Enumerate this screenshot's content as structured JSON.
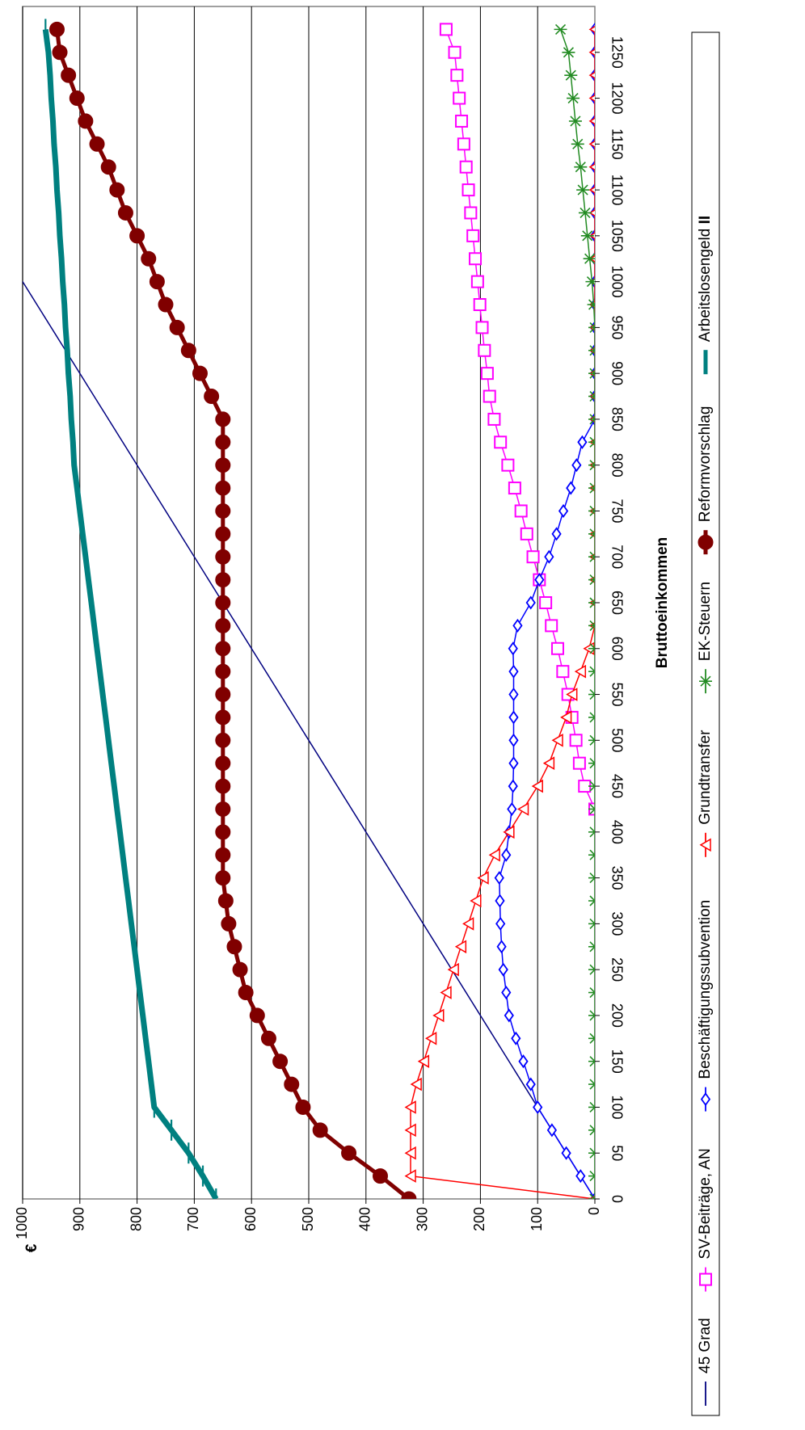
{
  "chart_data": {
    "type": "line",
    "xlabel": "Bruttoeinkommen",
    "ylabel": "€",
    "xlim": [
      0,
      1300
    ],
    "ylim": [
      0,
      1000
    ],
    "x_ticks": [
      0,
      50,
      100,
      150,
      200,
      250,
      300,
      350,
      400,
      450,
      500,
      550,
      600,
      650,
      700,
      750,
      800,
      850,
      900,
      950,
      1000,
      1050,
      1100,
      1150,
      1200,
      1250
    ],
    "y_ticks": [
      0,
      100,
      200,
      300,
      400,
      500,
      600,
      700,
      800,
      900,
      1000
    ],
    "orientation": "rotated 90° clockwise",
    "grid": "horizontal lines at each y tick",
    "legend_position": "left side (rotated bottom)",
    "series": [
      {
        "name": "45 Grad",
        "color": "#000080",
        "marker": "none",
        "x": [
          0,
          1300
        ],
        "y": [
          0,
          1300
        ]
      },
      {
        "name": "SV-Beiträge, AN",
        "color": "#ff00ff",
        "marker": "square",
        "x": [
          425,
          450,
          475,
          500,
          525,
          550,
          575,
          600,
          625,
          650,
          675,
          700,
          725,
          750,
          775,
          800,
          825,
          850,
          875,
          900,
          925,
          950,
          975,
          1000,
          1025,
          1050,
          1075,
          1100,
          1125,
          1150,
          1175,
          1200,
          1225,
          1250,
          1275
        ],
        "y": [
          0,
          18,
          27,
          33,
          40,
          47,
          56,
          65,
          76,
          86,
          97,
          108,
          119,
          129,
          140,
          152,
          165,
          176,
          184,
          188,
          193,
          197,
          201,
          205,
          209,
          213,
          217,
          221,
          225,
          229,
          233,
          237,
          241,
          245,
          260
        ]
      },
      {
        "name": "Beschäftigungssubvention",
        "color": "#0000ff",
        "marker": "diamond",
        "x": [
          0,
          25,
          50,
          75,
          100,
          125,
          150,
          175,
          200,
          225,
          250,
          275,
          300,
          325,
          350,
          375,
          400,
          425,
          450,
          475,
          500,
          525,
          550,
          575,
          600,
          625,
          650,
          675,
          700,
          725,
          750,
          775,
          800,
          825,
          850,
          875,
          900,
          925,
          950,
          975,
          1000,
          1025,
          1050,
          1075,
          1100,
          1125,
          1150,
          1175,
          1200,
          1225,
          1250,
          1275
        ],
        "y": [
          0,
          25,
          50,
          75,
          100,
          112,
          125,
          138,
          150,
          155,
          160,
          163,
          165,
          166,
          167,
          155,
          150,
          145,
          143,
          142,
          142,
          142,
          142,
          142,
          143,
          135,
          112,
          97,
          80,
          67,
          55,
          42,
          32,
          22,
          0,
          0,
          0,
          0,
          0,
          0,
          0,
          0,
          0,
          0,
          0,
          0,
          0,
          0,
          0,
          0,
          0,
          0
        ]
      },
      {
        "name": "Grundtransfer",
        "color": "#ff0000",
        "marker": "triangle",
        "x": [
          0,
          25,
          50,
          75,
          100,
          125,
          150,
          175,
          200,
          225,
          250,
          275,
          300,
          325,
          350,
          375,
          400,
          425,
          450,
          475,
          500,
          525,
          550,
          575,
          600,
          625,
          650,
          675,
          700,
          725,
          750,
          775,
          800,
          825,
          850,
          875,
          900,
          925,
          950,
          975,
          1000,
          1025,
          1050,
          1075,
          1100,
          1125,
          1150,
          1175,
          1200,
          1225,
          1250,
          1275
        ],
        "y": [
          0,
          322,
          322,
          322,
          322,
          312,
          299,
          286,
          273,
          260,
          247,
          234,
          221,
          208,
          195,
          175,
          150,
          125,
          100,
          80,
          65,
          50,
          40,
          25,
          10,
          0,
          0,
          0,
          0,
          0,
          0,
          0,
          0,
          0,
          0,
          0,
          0,
          0,
          0,
          0,
          0,
          0,
          0,
          0,
          0,
          0,
          0,
          0,
          0,
          0,
          0,
          0
        ]
      },
      {
        "name": "EK-Steuern",
        "color": "#228b22",
        "marker": "asterisk",
        "x": [
          0,
          25,
          50,
          75,
          100,
          125,
          150,
          175,
          200,
          225,
          250,
          275,
          300,
          325,
          350,
          375,
          400,
          425,
          450,
          475,
          500,
          525,
          550,
          575,
          600,
          625,
          650,
          675,
          700,
          725,
          750,
          775,
          800,
          825,
          850,
          875,
          900,
          925,
          950,
          975,
          1000,
          1025,
          1050,
          1075,
          1100,
          1125,
          1150,
          1175,
          1200,
          1225,
          1250,
          1275
        ],
        "y": [
          0,
          0,
          0,
          0,
          0,
          0,
          0,
          0,
          0,
          0,
          0,
          0,
          0,
          0,
          0,
          0,
          0,
          0,
          0,
          0,
          0,
          0,
          0,
          0,
          0,
          0,
          0,
          0,
          0,
          0,
          0,
          0,
          0,
          0,
          0,
          0,
          0,
          0,
          0,
          2,
          5,
          9,
          13,
          17,
          21,
          25,
          30,
          34,
          38,
          42,
          46,
          60
        ]
      },
      {
        "name": "Reformvorschlag",
        "color": "#800000",
        "marker": "circle",
        "x": [
          0,
          25,
          50,
          75,
          100,
          125,
          150,
          175,
          200,
          225,
          250,
          275,
          300,
          325,
          350,
          375,
          400,
          425,
          450,
          475,
          500,
          525,
          550,
          575,
          600,
          625,
          650,
          675,
          700,
          725,
          750,
          775,
          800,
          825,
          850,
          875,
          900,
          925,
          950,
          975,
          1000,
          1025,
          1050,
          1075,
          1100,
          1125,
          1150,
          1175,
          1200,
          1225,
          1250,
          1275
        ],
        "y": [
          325,
          375,
          430,
          480,
          510,
          530,
          550,
          570,
          590,
          610,
          620,
          630,
          640,
          645,
          650,
          650,
          650,
          650,
          650,
          650,
          650,
          650,
          650,
          650,
          650,
          650,
          650,
          650,
          650,
          650,
          650,
          650,
          650,
          650,
          650,
          670,
          690,
          710,
          730,
          750,
          765,
          780,
          800,
          820,
          835,
          850,
          870,
          890,
          905,
          920,
          935,
          940
        ]
      },
      {
        "name": "Arbeitslosengeld II",
        "name_bold_part": "II",
        "color": "#008080",
        "marker": "dash",
        "x": [
          0,
          25,
          50,
          75,
          100,
          125,
          150,
          175,
          200,
          225,
          250,
          275,
          300,
          325,
          350,
          375,
          400,
          425,
          450,
          475,
          500,
          525,
          550,
          575,
          600,
          625,
          650,
          675,
          700,
          725,
          750,
          775,
          800,
          825,
          850,
          875,
          900,
          925,
          950,
          975,
          1000,
          1025,
          1050,
          1075,
          1100,
          1125,
          1150,
          1175,
          1200,
          1225,
          1250,
          1275
        ],
        "y": [
          662,
          685,
          710,
          740,
          770,
          775,
          780,
          785,
          790,
          795,
          800,
          805,
          810,
          815,
          820,
          825,
          830,
          835,
          840,
          845,
          850,
          855,
          860,
          865,
          870,
          875,
          880,
          885,
          890,
          895,
          900,
          905,
          910,
          912,
          915,
          917,
          920,
          922,
          925,
          927,
          930,
          932,
          935,
          937,
          940,
          942,
          945,
          947,
          950,
          952,
          955,
          960
        ]
      }
    ]
  }
}
